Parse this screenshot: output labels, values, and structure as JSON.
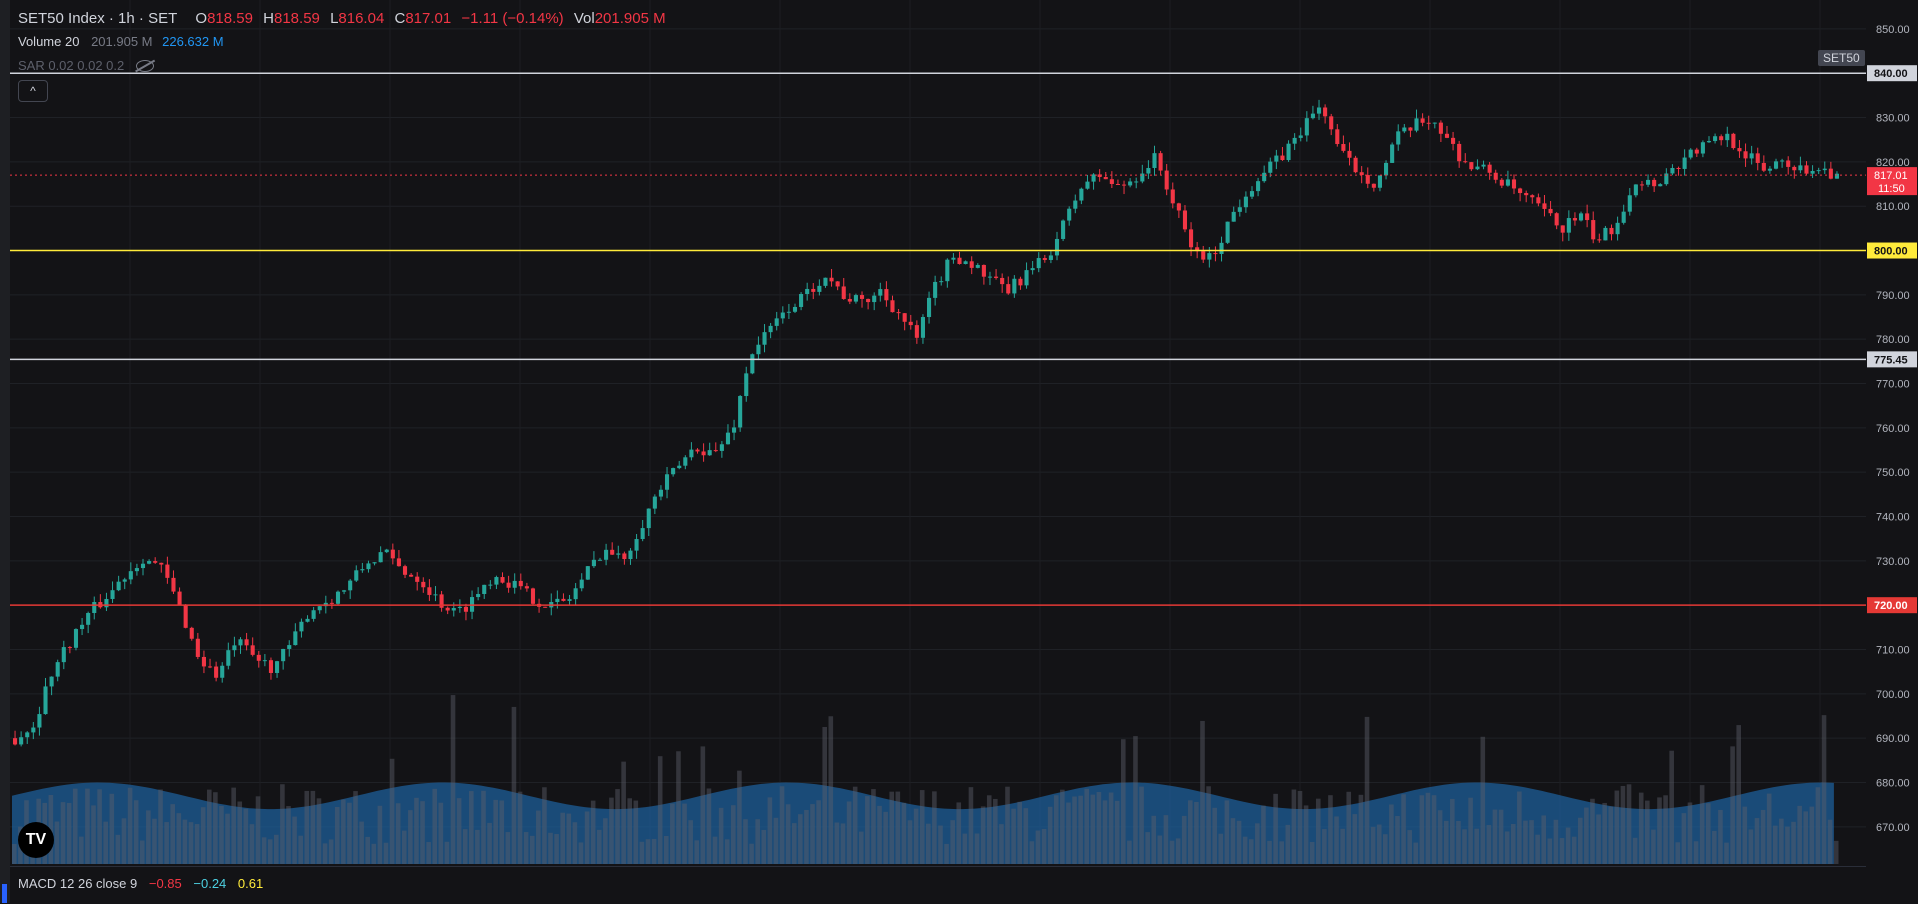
{
  "legend": {
    "symbol": "SET50 Index · 1h · SET",
    "o_key": "O",
    "o_val": "818.59",
    "h_key": "H",
    "h_val": "818.59",
    "l_key": "L",
    "l_val": "816.04",
    "c_key": "C",
    "c_val": "817.01",
    "change": "−1.11 (−0.14%)",
    "vol_key": "Vol",
    "vol_val": "201.905 M"
  },
  "volume_legend": {
    "name": "Volume 20",
    "value": "201.905 M",
    "ma": "226.632 M"
  },
  "sar_legend": {
    "text": "SAR 0.02 0.02 0.2"
  },
  "collapse_label": "^",
  "symbol_badge": "SET50",
  "logo_text": "TV",
  "macd_legend": {
    "name": "MACD 12 26 close 9",
    "v1": "−0.85",
    "v2": "−0.24",
    "v3": "0.61"
  },
  "colors": {
    "up": "#26a69a",
    "down": "#f23645",
    "volume": "#3a3d45",
    "volume_ma": "#1e5f99",
    "yellow_line": "#ffeb3b",
    "red_line": "#e53935",
    "white_line": "#d1d4dc"
  },
  "chart_data": {
    "type": "candlestick",
    "title": "SET50 Index · 1h · SET",
    "ylim": [
      665,
      852
    ],
    "yticks": [
      "850.00",
      "830.00",
      "820.00",
      "810.00",
      "790.00",
      "780.00",
      "770.00",
      "760.00",
      "750.00",
      "740.00",
      "730.00",
      "710.00",
      "700.00",
      "690.00",
      "680.00",
      "670.00"
    ],
    "horizontal_lines": [
      {
        "value": 840.0,
        "label": "840.00",
        "color": "#d1d4dc"
      },
      {
        "value": 800.0,
        "label": "800.00",
        "color": "#ffeb3b"
      },
      {
        "value": 775.45,
        "label": "775.45",
        "color": "#d1d4dc"
      },
      {
        "value": 720.0,
        "label": "720.00",
        "color": "#e53935"
      }
    ],
    "last_price": {
      "value": 817.01,
      "label": "817.01",
      "countdown": "11:50"
    },
    "close_path": [
      690,
      693,
      705,
      712,
      718,
      722,
      727,
      731,
      728,
      719,
      708,
      704,
      712,
      708,
      706,
      711,
      719,
      721,
      724,
      729,
      732,
      728,
      726,
      721,
      718,
      722,
      727,
      725,
      722,
      720,
      721,
      727,
      733,
      730,
      738,
      746,
      751,
      756,
      754,
      760,
      777,
      782,
      787,
      790,
      795,
      790,
      788,
      791,
      786,
      780,
      792,
      799,
      797,
      793,
      791,
      795,
      798,
      806,
      815,
      817,
      814,
      817,
      821,
      810,
      800,
      798,
      807,
      814,
      818,
      822,
      828,
      833,
      822,
      818,
      815,
      825,
      828,
      830,
      824,
      819,
      818,
      815,
      812,
      809,
      805,
      808,
      802,
      806,
      816,
      815,
      818,
      822,
      824,
      826,
      822,
      818,
      821,
      818,
      819,
      817
    ],
    "candle_count": 300,
    "volume_ma_range": [
      674,
      680
    ]
  }
}
